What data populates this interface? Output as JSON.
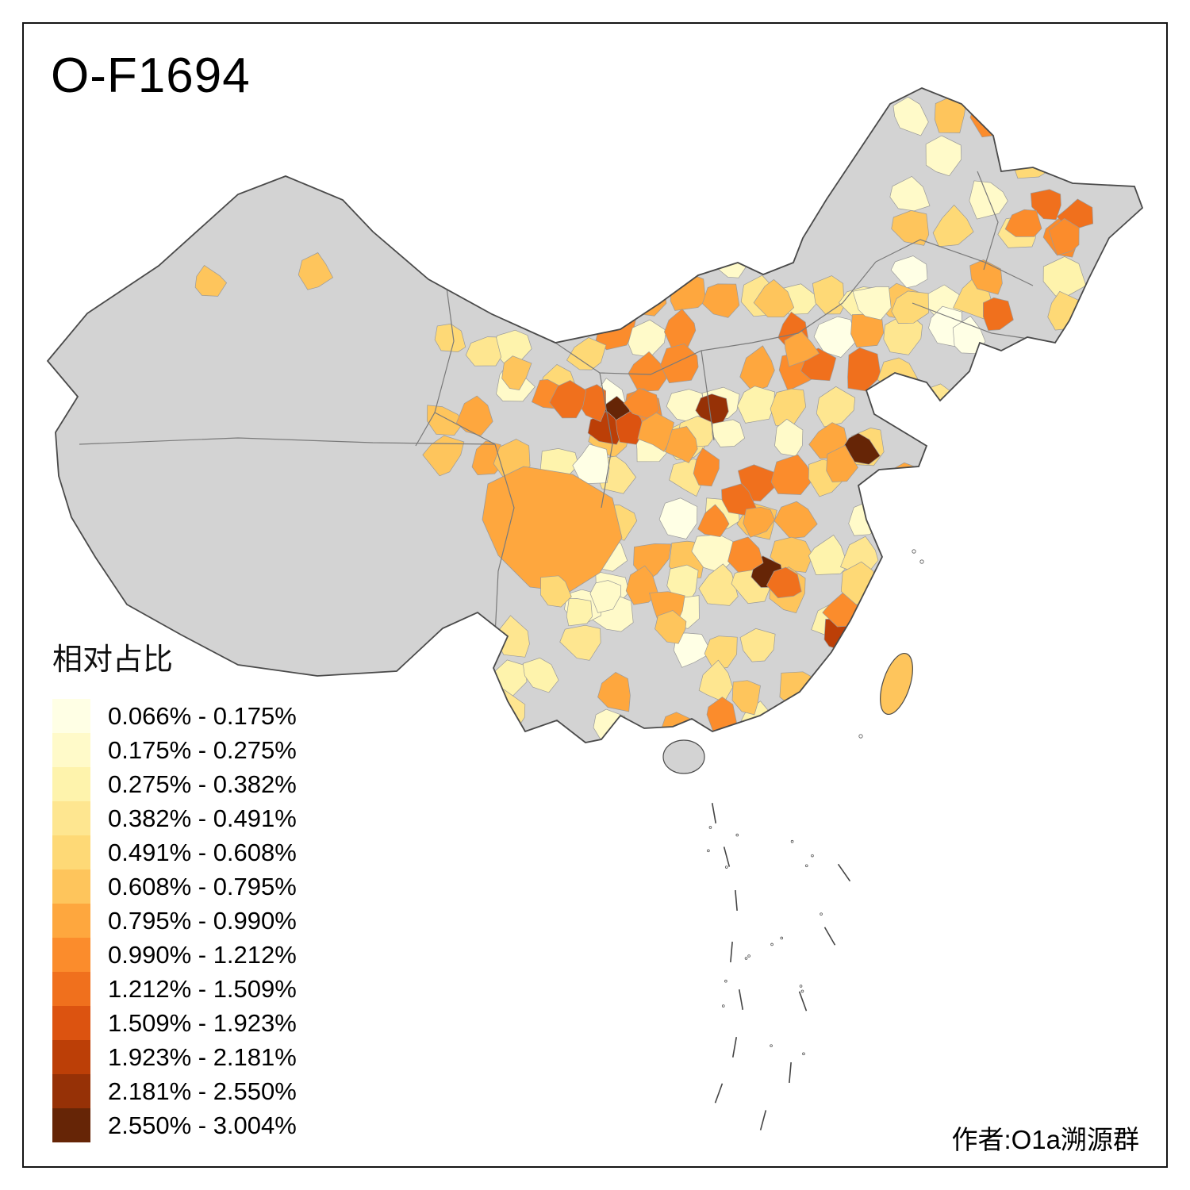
{
  "title": "O-F1694",
  "legend": {
    "title": "相对占比",
    "bins": [
      {
        "label": "0.066% - 0.175%",
        "color": "#FFFFE5"
      },
      {
        "label": "0.175% - 0.275%",
        "color": "#FFFAC9"
      },
      {
        "label": "0.275% - 0.382%",
        "color": "#FEF3AC"
      },
      {
        "label": "0.382% - 0.491%",
        "color": "#FEE690"
      },
      {
        "label": "0.491% - 0.608%",
        "color": "#FED976"
      },
      {
        "label": "0.608% - 0.795%",
        "color": "#FEC55C"
      },
      {
        "label": "0.795% - 0.990%",
        "color": "#FEA73E"
      },
      {
        "label": "0.990% - 1.212%",
        "color": "#FB8C2C"
      },
      {
        "label": "1.212% - 1.509%",
        "color": "#F0701D"
      },
      {
        "label": "1.509% - 1.923%",
        "color": "#DC5310"
      },
      {
        "label": "1.923% - 2.181%",
        "color": "#BC3F07"
      },
      {
        "label": "2.181% - 2.550%",
        "color": "#963106"
      },
      {
        "label": "2.550% - 3.004%",
        "color": "#662506"
      }
    ]
  },
  "footer": {
    "author_credit": "作者:O1a溯源群"
  },
  "map": {
    "no_data_color": "#D3D3D3",
    "province_border_color": "#7A7A7A",
    "outline_color": "#4A4A4A",
    "cell_border_color": "#9A9A9A",
    "sea_color": "#FFFFFF"
  },
  "chart_data": {
    "type": "choropleth",
    "title": "O-F1694",
    "region": "China, prefecture-level divisions",
    "legend_title": "相对占比",
    "bins": [
      "0.066% - 0.175%",
      "0.175% - 0.275%",
      "0.275% - 0.382%",
      "0.382% - 0.491%",
      "0.491% - 0.608%",
      "0.608% - 0.795%",
      "0.795% - 0.990%",
      "0.990% - 1.212%",
      "1.212% - 1.509%",
      "1.509% - 1.923%",
      "1.923% - 2.181%",
      "2.181% - 2.550%",
      "2.550% - 3.004%"
    ],
    "colors": [
      "#FFFFE5",
      "#FFFAC9",
      "#FEF3AC",
      "#FEE690",
      "#FED976",
      "#FEC55C",
      "#FEA73E",
      "#FB8C2C",
      "#F0701D",
      "#DC5310",
      "#BC3F07",
      "#963106",
      "#662506"
    ],
    "no_data_color": "#D3D3D3",
    "annotations": [
      "作者:O1a溯源群"
    ]
  }
}
